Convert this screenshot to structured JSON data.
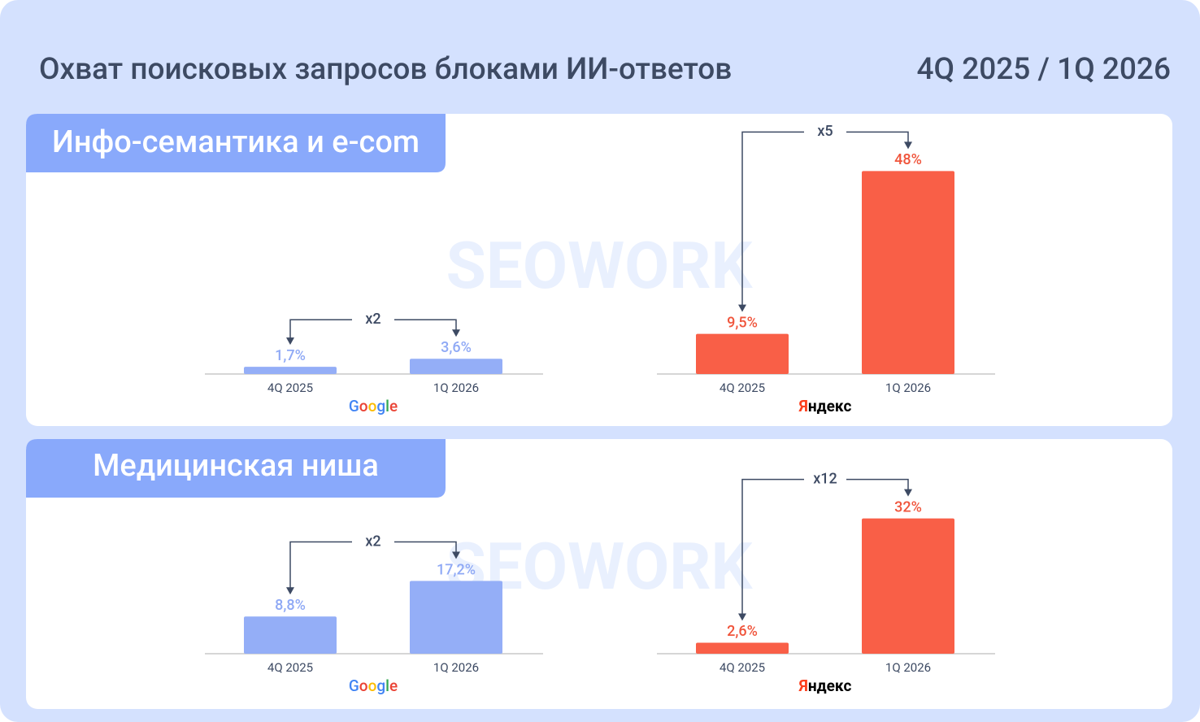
{
  "header": {
    "title": "Охват поисковых запросов блоками ИИ-ответов",
    "period": "4Q 2025 / 1Q 2026"
  },
  "watermark": "SEOWORK",
  "sections": [
    {
      "title": "Инфо-семантика и e-com"
    },
    {
      "title": "Медицинская ниша"
    }
  ],
  "chart_data": [
    {
      "type": "bar",
      "section": 0,
      "logo": "Google",
      "annotation": "x2",
      "color": "#94aef7",
      "label_color": "#8fa9f5",
      "categories": [
        "4Q 2025",
        "1Q 2026"
      ],
      "values": [
        1.7,
        3.6
      ],
      "value_labels": [
        "1,7%",
        "3,6%"
      ]
    },
    {
      "type": "bar",
      "section": 0,
      "logo": "Яндекс",
      "annotation": "x5",
      "color": "#f95f47",
      "label_color": "#f0553c",
      "categories": [
        "4Q 2025",
        "1Q 2026"
      ],
      "values": [
        9.5,
        48
      ],
      "value_labels": [
        "9,5%",
        "48%"
      ]
    },
    {
      "type": "bar",
      "section": 1,
      "logo": "Google",
      "annotation": "x2",
      "color": "#94aef7",
      "label_color": "#8fa9f5",
      "categories": [
        "4Q 2025",
        "1Q 2026"
      ],
      "values": [
        8.8,
        17.2
      ],
      "value_labels": [
        "8,8%",
        "17,2%"
      ]
    },
    {
      "type": "bar",
      "section": 1,
      "logo": "Яндекс",
      "annotation": "x12",
      "color": "#f95f47",
      "label_color": "#f0553c",
      "categories": [
        "4Q 2025",
        "1Q 2026"
      ],
      "values": [
        2.6,
        32
      ],
      "value_labels": [
        "2,6%",
        "32%"
      ]
    }
  ]
}
